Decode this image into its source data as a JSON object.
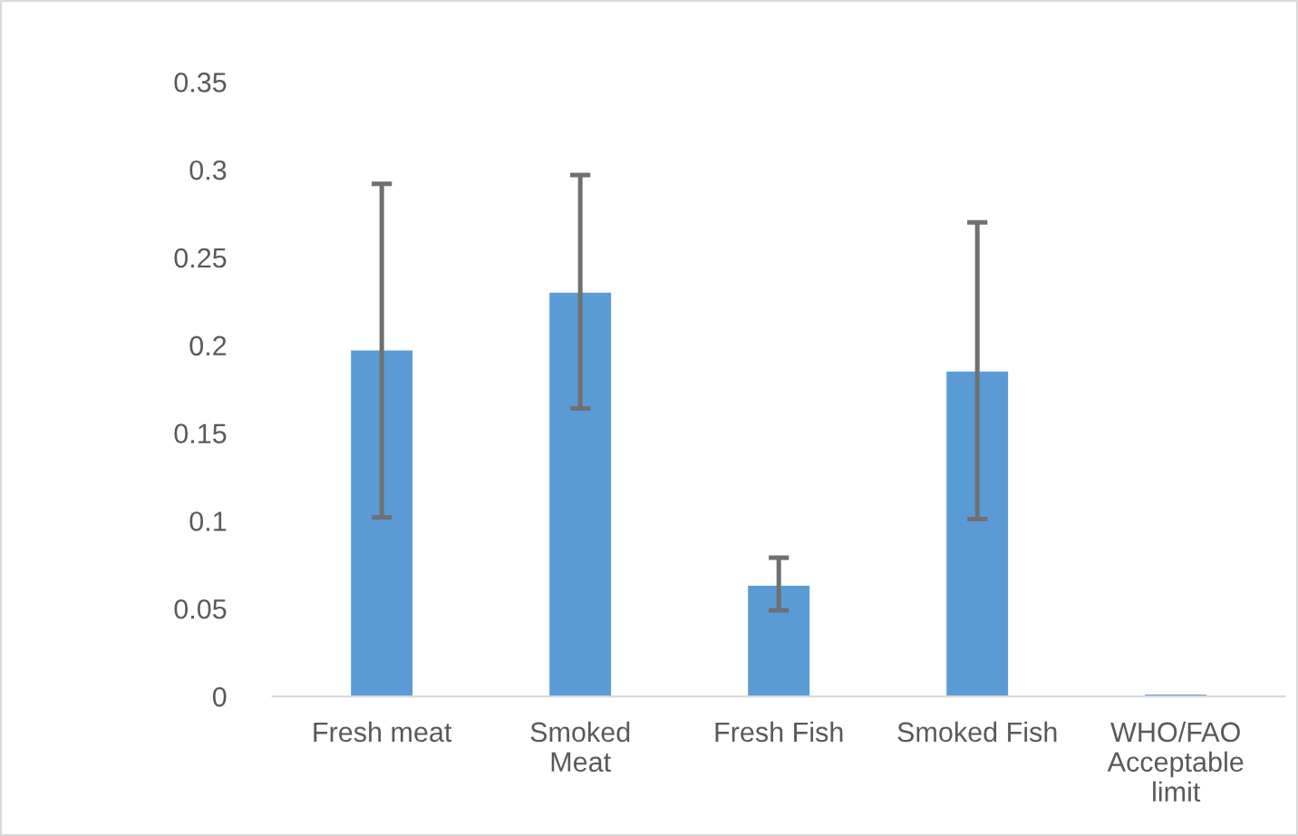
{
  "chart_data": {
    "type": "bar",
    "categories": [
      "Fresh meat",
      "Smoked\nMeat",
      "Fresh Fish",
      "Smoked Fish",
      "WHO/FAO\nAcceptable\nlimit"
    ],
    "values": [
      0.197,
      0.23,
      0.063,
      0.185,
      0.001
    ],
    "errors": [
      [
        0.102,
        0.292
      ],
      [
        0.164,
        0.297
      ],
      [
        0.049,
        0.079
      ],
      [
        0.101,
        0.27
      ],
      null
    ],
    "color": "#5b9bd5",
    "ylim": [
      0,
      0.35
    ],
    "yticks": [
      {
        "value": 0,
        "label": "0"
      },
      0.05,
      0.1,
      0.15,
      0.2,
      0.25,
      0.3,
      0.35
    ],
    "grid": false
  }
}
